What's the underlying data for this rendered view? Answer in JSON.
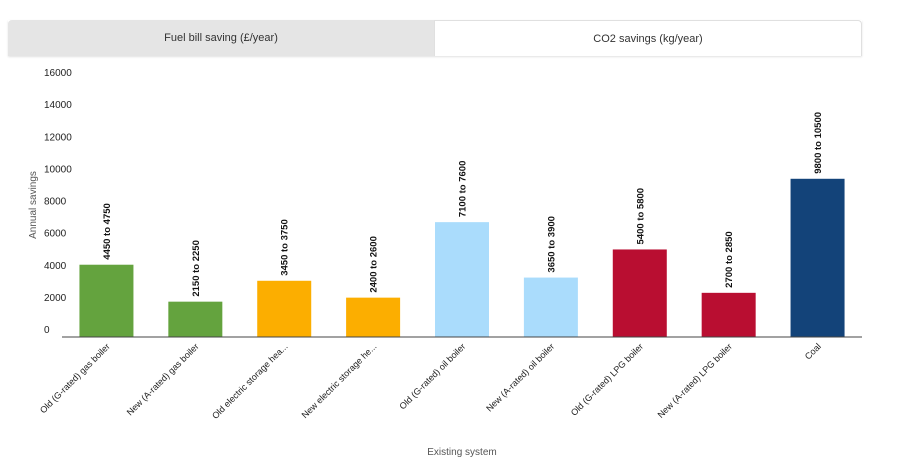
{
  "tabs": [
    {
      "label": "Fuel bill saving (£/year)",
      "active": false
    },
    {
      "label": "CO2 savings (kg/year)",
      "active": true
    }
  ],
  "chart_data": {
    "type": "bar",
    "title": "",
    "xlabel": "Existing system",
    "ylabel": "Annual savings",
    "ylim": [
      0,
      16000
    ],
    "yticks": [
      0,
      2000,
      4000,
      6000,
      8000,
      10000,
      12000,
      14000,
      16000
    ],
    "grid": false,
    "categories": [
      "Old (G-rated) gas boiler",
      "New (A-rated) gas boiler",
      "Old electric storage hea...",
      "New electric storage he...",
      "Old (G-rated) oil boiler",
      "New (A-rated) oil boiler",
      "Old (G-rated) LPG boiler",
      "New (A-rated) LPG boiler",
      "Coal"
    ],
    "values": [
      4500,
      2200,
      3500,
      2450,
      7150,
      3700,
      5450,
      2750,
      9850
    ],
    "data_labels": [
      "4450 to 4750",
      "2150 to 2250",
      "3450 to 3750",
      "2400 to 2600",
      "7100 to 7600",
      "3650 to 3900",
      "5400 to 5800",
      "2700 to 2850",
      "9800 to 10500"
    ],
    "colors": [
      "#64a33e",
      "#64a33e",
      "#fcae00",
      "#fcae00",
      "#aadcfc",
      "#aadcfc",
      "#b90e31",
      "#b90e31",
      "#134379"
    ]
  }
}
